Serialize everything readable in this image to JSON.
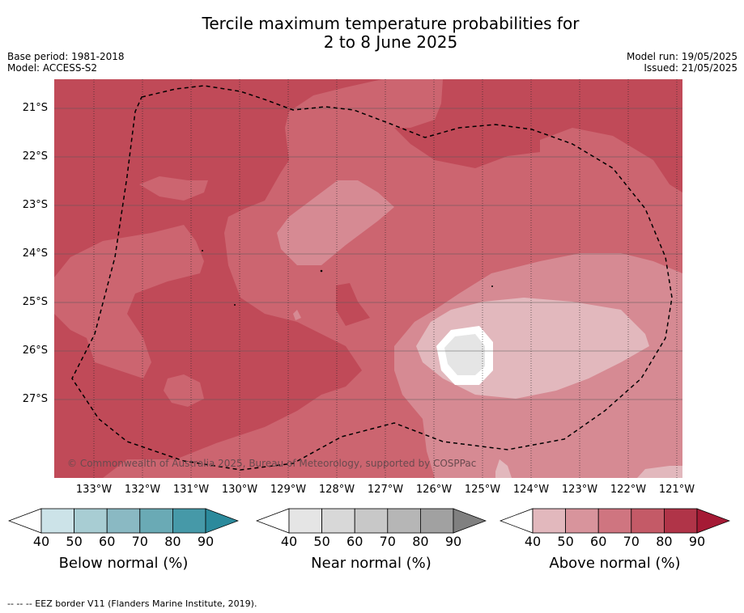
{
  "title": {
    "line1": "Tercile maximum temperature probabilities for",
    "line2": "2 to 8 June 2025"
  },
  "meta": {
    "base_period": "Base period: 1981-2018",
    "model": "Model: ACCESS-S2",
    "model_run": "Model run: 19/05/2025",
    "issued": "Issued: 21/05/2025"
  },
  "map": {
    "latitude_labels": [
      "21°S",
      "22°S",
      "23°S",
      "24°S",
      "25°S",
      "26°S",
      "27°S"
    ],
    "longitude_labels": [
      "133°W",
      "132°W",
      "131°W",
      "130°W",
      "129°W",
      "128°W",
      "127°W",
      "126°W",
      "125°W",
      "124°W",
      "123°W",
      "122°W",
      "121°W"
    ],
    "copyright": "© Commonwealth of Australia 2025, Bureau of Meteorology, supported by COSPPac",
    "colors": {
      "above_80_90": "#c04a58",
      "above_70_80": "#cc6570",
      "above_60_70": "#d68a93",
      "above_50_60": "#e2b8bd",
      "near_40_50": "#e5e5e5",
      "white": "#ffffff"
    }
  },
  "colorbars": [
    {
      "label": "Below normal (%)",
      "ticks": [
        "40",
        "50",
        "60",
        "70",
        "80",
        "90"
      ],
      "colors": [
        "#cce3e8",
        "#a8cdd3",
        "#8ab9c3",
        "#6aaab5",
        "#4699a8",
        "#2b8a9c"
      ]
    },
    {
      "label": "Near normal (%)",
      "ticks": [
        "40",
        "50",
        "60",
        "70",
        "80",
        "90"
      ],
      "colors": [
        "#e5e5e5",
        "#d8d8d8",
        "#c8c8c8",
        "#b6b6b6",
        "#a1a1a1",
        "#808080"
      ]
    },
    {
      "label": "Above normal (%)",
      "ticks": [
        "40",
        "50",
        "60",
        "70",
        "80",
        "90"
      ],
      "colors": [
        "#e2b8bd",
        "#d8949c",
        "#cf7580",
        "#c45a67",
        "#b03448",
        "#a51a35"
      ]
    }
  ],
  "footer": "--  --  -- EEZ border V11 (Flanders Marine Institute, 2019)."
}
